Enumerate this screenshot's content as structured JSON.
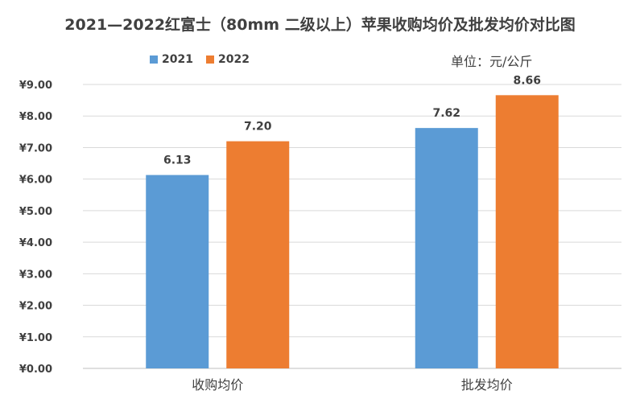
{
  "chart_data": {
    "type": "bar",
    "title": "2021—2022红富士（80mm 二级以上）苹果收购均价及批发均价对比图",
    "unit_note": "单位：元/公斤",
    "categories": [
      "收购均价",
      "批发均价"
    ],
    "series": [
      {
        "name": "2021",
        "color": "#5B9BD5",
        "values": [
          6.13,
          7.62
        ],
        "value_labels": [
          "6.13",
          "7.62"
        ]
      },
      {
        "name": "2022",
        "color": "#ED7D31",
        "values": [
          7.2,
          8.66
        ],
        "value_labels": [
          "7.20",
          "8.66"
        ]
      }
    ],
    "ylim": [
      0,
      9
    ],
    "y_ticks": [
      0,
      1,
      2,
      3,
      4,
      5,
      6,
      7,
      8,
      9
    ],
    "y_tick_labels": [
      "¥0.00",
      "¥1.00",
      "¥2.00",
      "¥3.00",
      "¥4.00",
      "¥5.00",
      "¥6.00",
      "¥7.00",
      "¥8.00",
      "¥9.00"
    ],
    "grid": true,
    "legend_position": "top-left"
  }
}
